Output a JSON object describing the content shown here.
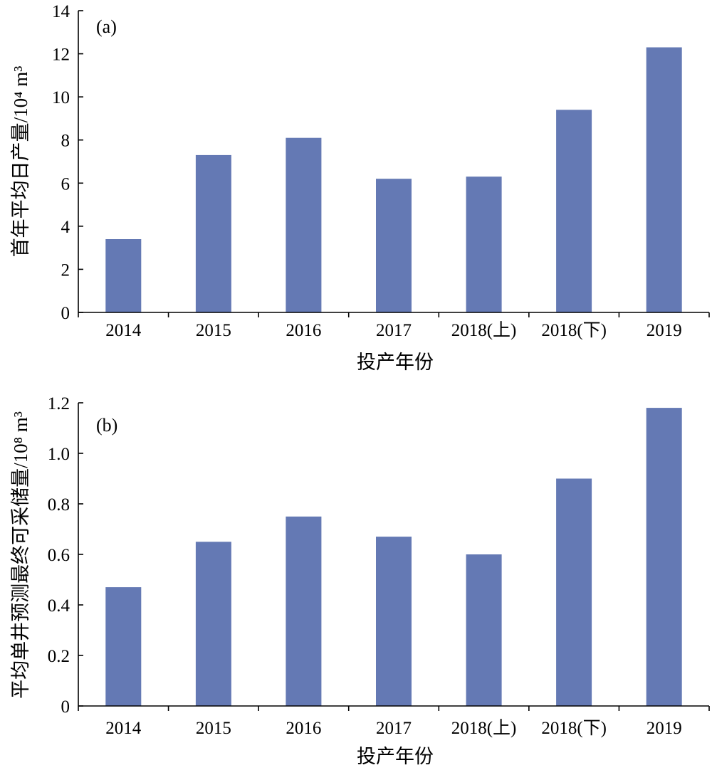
{
  "chart_data": [
    {
      "type": "bar",
      "panel_label": "(a)",
      "categories": [
        "2014",
        "2015",
        "2016",
        "2017",
        "2018(上)",
        "2018(下)",
        "2019"
      ],
      "values": [
        3.4,
        7.3,
        8.1,
        6.2,
        6.3,
        9.4,
        12.3
      ],
      "ylabel": "首年平均日产量/10⁴ m³",
      "xlabel": "投产年份",
      "ylim": [
        0,
        14
      ],
      "yticks": [
        "0",
        "2",
        "4",
        "6",
        "8",
        "10",
        "12",
        "14"
      ],
      "ytick_values": [
        0,
        2,
        4,
        6,
        8,
        10,
        12,
        14
      ],
      "bar_color": "#6479b4",
      "grid": false,
      "legend": "none"
    },
    {
      "type": "bar",
      "panel_label": "(b)",
      "categories": [
        "2014",
        "2015",
        "2016",
        "2017",
        "2018(上)",
        "2018(下)",
        "2019"
      ],
      "values": [
        0.47,
        0.65,
        0.75,
        0.67,
        0.6,
        0.9,
        1.18
      ],
      "ylabel": "平均单井预测最终可采储量/10⁸ m³",
      "xlabel": "投产年份",
      "ylim": [
        0,
        1.2
      ],
      "yticks": [
        "0",
        "0.2",
        "0.4",
        "0.6",
        "0.8",
        "1.0",
        "1.2"
      ],
      "ytick_values": [
        0,
        0.2,
        0.4,
        0.6,
        0.8,
        1.0,
        1.2
      ],
      "bar_color": "#6479b4",
      "grid": false,
      "legend": "none"
    }
  ]
}
